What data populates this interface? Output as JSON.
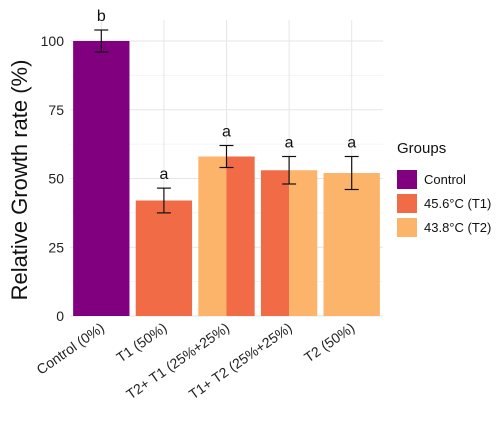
{
  "chart_data": {
    "type": "bar",
    "ylabel": "Relative Growth rate (%)",
    "xlabel": "",
    "ylim": [
      0,
      107
    ],
    "y_ticks": [
      0,
      25,
      50,
      75,
      100
    ],
    "grid": true,
    "legend_position": "right",
    "legend": {
      "title": "Groups",
      "items": [
        {
          "label": "Control",
          "color": "#800080"
        },
        {
          "label": "45.6°C  (T1)",
          "color": "#F26B47"
        },
        {
          "label": "43.8°C  (T2)",
          "color": "#FBB469"
        }
      ]
    },
    "categories": [
      "Control (0%)",
      "T1 (50%)",
      "T2+ T1 (25%+25%)",
      "T1+ T2 (25%+25%)",
      "T2 (50%)"
    ],
    "bars": [
      {
        "category": "Control (0%)",
        "segments": [
          {
            "group": "Control",
            "value": 100
          }
        ],
        "error": 4,
        "significance": "b"
      },
      {
        "category": "T1 (50%)",
        "segments": [
          {
            "group": "45.6°C  (T1)",
            "value": 42
          }
        ],
        "error": 4.5,
        "significance": "a"
      },
      {
        "category": "T2+ T1 (25%+25%)",
        "segments": [
          {
            "group": "43.8°C  (T2)",
            "value": 58
          },
          {
            "group": "45.6°C  (T1)",
            "value": 58
          }
        ],
        "error": 4,
        "significance": "a"
      },
      {
        "category": "T1+ T2 (25%+25%)",
        "segments": [
          {
            "group": "45.6°C  (T1)",
            "value": 53
          },
          {
            "group": "43.8°C  (T2)",
            "value": 53
          }
        ],
        "error": 5,
        "significance": "a"
      },
      {
        "category": "T2 (50%)",
        "segments": [
          {
            "group": "43.8°C  (T2)",
            "value": 52
          }
        ],
        "error": 6,
        "significance": "a"
      }
    ]
  }
}
